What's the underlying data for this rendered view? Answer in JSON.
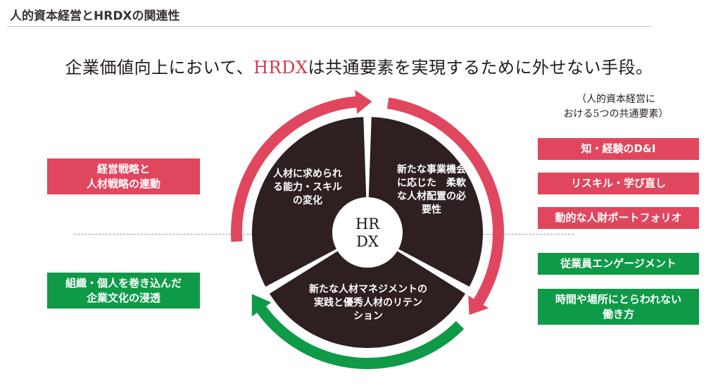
{
  "header": {
    "title": "人的資本経営とHRDXの関連性"
  },
  "headline": {
    "before": "企業価値向上において、",
    "accent": "HRDX",
    "after": "は共通要素を実現するために外せない手段。"
  },
  "elements_note": {
    "line1": "（人的資本経営に",
    "line2": "おける5つの共通要素）"
  },
  "left_boxes": {
    "top": {
      "line1": "経営戦略と",
      "line2": "人材戦略の連動"
    },
    "bottom": {
      "line1": "組織・個人を巻き込んだ",
      "line2": "企業文化の浸透"
    }
  },
  "right_boxes": [
    {
      "line1": "知・経験のD&I",
      "line2": ""
    },
    {
      "line1": "リスキル・学び直し",
      "line2": ""
    },
    {
      "line1": "動的な人財ポートフォリオ",
      "line2": ""
    },
    {
      "line1": "従業員エンゲージメント",
      "line2": ""
    },
    {
      "line1": "時間や場所にとらわれない",
      "line2": "働き方"
    }
  ],
  "cycle": {
    "hub": {
      "line1": "HR",
      "line2": "DX"
    },
    "segments": [
      {
        "lines": [
          "人材に求められ",
          "る能力・スキル",
          "の変化"
        ]
      },
      {
        "lines": [
          "新たな事業機会",
          "に応じた　柔軟",
          "な人材配置の必",
          "要性"
        ]
      },
      {
        "lines": [
          "新たな人材マネジメントの",
          "実践と優秀人材のリテン",
          "ション"
        ]
      }
    ]
  },
  "colors": {
    "accent_red": "#e0475e",
    "accent_green": "#0f9a48",
    "segment_fill": "#2e1f21",
    "headline_red": "#d03a4e"
  }
}
